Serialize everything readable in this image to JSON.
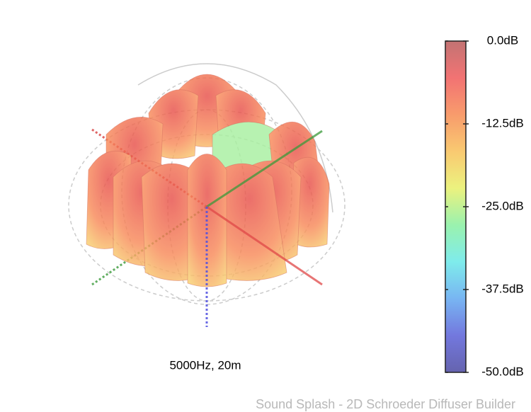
{
  "chart_data": {
    "type": "polar3d",
    "caption": "5000Hz, 20m",
    "footer": "Sound Splash - 2D Schroeder Diffuser Builder",
    "clim": [
      -50,
      0
    ],
    "cticks": [
      {
        "value": 0,
        "label": "0.0dB"
      },
      {
        "value": -12.5,
        "label": "-12.5dB"
      },
      {
        "value": -25,
        "label": "-25.0dB"
      },
      {
        "value": -37.5,
        "label": "-37.5dB"
      },
      {
        "value": -50,
        "label": "-50.0dB"
      }
    ],
    "colormap": [
      "#b85a5a",
      "#f05a5a",
      "#f78a52",
      "#f8c058",
      "#e8f068",
      "#88f0a0",
      "#68e8e8",
      "#60a8f0",
      "#5a60d8",
      "#4a48a0"
    ]
  }
}
